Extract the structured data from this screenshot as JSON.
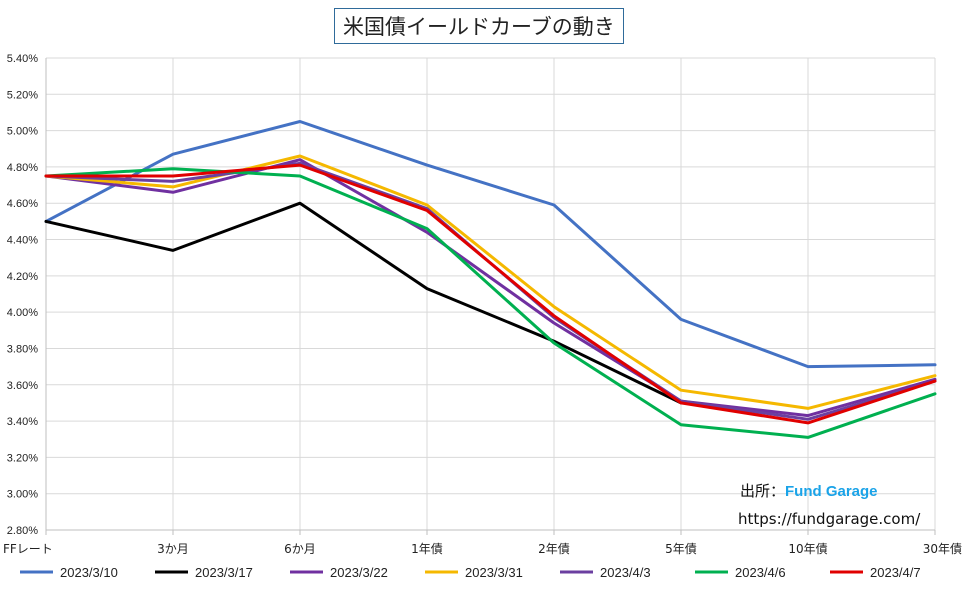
{
  "title": "米国債イールドカーブの動き",
  "source": {
    "label": "出所：",
    "brand": "Fund Garage",
    "url": "https://fundgarage.com/"
  },
  "colors": {
    "grid": "#d9d9d9",
    "axis": "#bfbfbf",
    "brand": "#1aa3e8"
  },
  "chart_data": {
    "type": "line",
    "title": "米国債イールドカーブの動き",
    "categories": [
      "FFレート",
      "3か月",
      "6か月",
      "1年債",
      "2年債",
      "5年債",
      "10年債",
      "30年債"
    ],
    "y_ticks": [
      "2.80%",
      "3.00%",
      "3.20%",
      "3.40%",
      "3.60%",
      "3.80%",
      "4.00%",
      "4.20%",
      "4.40%",
      "4.60%",
      "4.80%",
      "5.00%",
      "5.20%",
      "5.40%"
    ],
    "ylim": [
      2.8,
      5.4
    ],
    "y_step": 0.2,
    "grid": true,
    "legend": "bottom",
    "series": [
      {
        "name": "2023/3/10",
        "color": "#4472c4",
        "values": [
          4.5,
          4.87,
          5.05,
          4.81,
          4.59,
          3.96,
          3.7,
          3.71
        ]
      },
      {
        "name": "2023/3/17",
        "color": "#000000",
        "values": [
          4.5,
          4.34,
          4.6,
          4.13,
          3.84,
          3.5,
          null,
          null
        ]
      },
      {
        "name": "2023/3/22",
        "color": "#7030a0",
        "values": [
          4.75,
          4.66,
          4.84,
          4.44,
          3.94,
          3.51,
          3.43,
          3.63
        ]
      },
      {
        "name": "2023/3/31",
        "color": "#f5b800",
        "values": [
          4.75,
          4.69,
          4.86,
          4.59,
          4.03,
          3.57,
          3.47,
          3.65
        ]
      },
      {
        "name": "2023/4/3",
        "color": "#6b3fa0",
        "values": [
          4.75,
          4.72,
          4.82,
          4.57,
          3.97,
          3.51,
          3.41,
          3.62
        ]
      },
      {
        "name": "2023/4/6",
        "color": "#00b050",
        "values": [
          4.75,
          4.79,
          4.75,
          4.46,
          3.83,
          3.38,
          3.31,
          3.55
        ]
      },
      {
        "name": "2023/4/7",
        "color": "#e00000",
        "values": [
          4.75,
          4.75,
          4.81,
          4.56,
          3.98,
          3.5,
          3.39,
          3.62
        ]
      }
    ]
  }
}
